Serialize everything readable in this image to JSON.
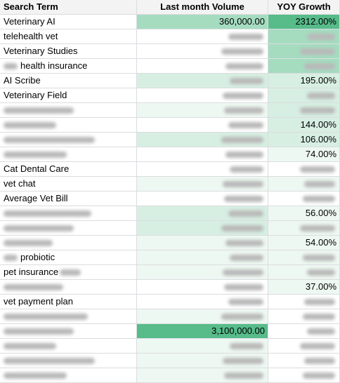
{
  "header": {
    "col_term": "Search Term",
    "col_volume": "Last month Volume",
    "col_growth": "YOY Growth"
  },
  "colors": {
    "strong_green": "#57bb8a",
    "mid_green": "#a5dcc0",
    "light_green": "#d7efe2",
    "pale_green": "#eef8f2",
    "white": "#ffffff"
  },
  "rows": [
    {
      "term": "Veterinary AI",
      "term_blur": 0,
      "volume": "360,000.00",
      "volume_blur": 0,
      "growth": "2312.00%",
      "growth_blur": 0,
      "vol_bg": "mid_green",
      "growth_bg": "strong_green"
    },
    {
      "term": "telehealth vet",
      "term_blur": 0,
      "volume": "",
      "volume_blur": 1,
      "growth": "",
      "growth_blur": 1,
      "vol_bg": "white",
      "growth_bg": "mid_green"
    },
    {
      "term": "Veterinary Studies",
      "term_blur": 0,
      "volume": "",
      "volume_blur": 1,
      "growth": "",
      "growth_blur": 1,
      "vol_bg": "white",
      "growth_bg": "mid_green"
    },
    {
      "term": "health insurance",
      "term_blur": 1,
      "volume": "",
      "volume_blur": 1,
      "growth": "",
      "growth_blur": 1,
      "vol_bg": "white",
      "growth_bg": "mid_green"
    },
    {
      "term": "AI Scribe",
      "term_blur": 0,
      "volume": "",
      "volume_blur": 1,
      "growth": "195.00%",
      "growth_blur": 0,
      "vol_bg": "light_green",
      "growth_bg": "light_green"
    },
    {
      "term": "Veterinary Field",
      "term_blur": 0,
      "volume": "",
      "volume_blur": 1,
      "growth": "",
      "growth_blur": 1,
      "vol_bg": "white",
      "growth_bg": "light_green"
    },
    {
      "term": "",
      "term_blur": 1,
      "volume": "",
      "volume_blur": 1,
      "growth": "",
      "growth_blur": 1,
      "vol_bg": "pale_green",
      "growth_bg": "light_green"
    },
    {
      "term": "",
      "term_blur": 1,
      "volume": "",
      "volume_blur": 1,
      "growth": "144.00%",
      "growth_blur": 0,
      "vol_bg": "white",
      "growth_bg": "light_green"
    },
    {
      "term": "",
      "term_blur": 1,
      "volume": "",
      "volume_blur": 1,
      "growth": "106.00%",
      "growth_blur": 0,
      "vol_bg": "light_green",
      "growth_bg": "light_green"
    },
    {
      "term": "",
      "term_blur": 1,
      "volume": "",
      "volume_blur": 1,
      "growth": "74.00%",
      "growth_blur": 0,
      "vol_bg": "white",
      "growth_bg": "pale_green"
    },
    {
      "term": "Cat Dental Care",
      "term_blur": 0,
      "volume": "",
      "volume_blur": 1,
      "growth": "",
      "growth_blur": 1,
      "vol_bg": "white",
      "growth_bg": "white"
    },
    {
      "term": "vet chat",
      "term_blur": 0,
      "volume": "",
      "volume_blur": 1,
      "growth": "",
      "growth_blur": 1,
      "vol_bg": "pale_green",
      "growth_bg": "pale_green"
    },
    {
      "term": "Average Vet Bill",
      "term_blur": 0,
      "volume": "",
      "volume_blur": 1,
      "growth": "",
      "growth_blur": 1,
      "vol_bg": "white",
      "growth_bg": "white"
    },
    {
      "term": "",
      "term_blur": 1,
      "volume": "",
      "volume_blur": 1,
      "growth": "56.00%",
      "growth_blur": 0,
      "vol_bg": "light_green",
      "growth_bg": "pale_green"
    },
    {
      "term": "",
      "term_blur": 1,
      "volume": "",
      "volume_blur": 1,
      "growth": "",
      "growth_blur": 1,
      "vol_bg": "light_green",
      "growth_bg": "pale_green"
    },
    {
      "term": "",
      "term_blur": 1,
      "volume": "",
      "volume_blur": 1,
      "growth": "54.00%",
      "growth_blur": 0,
      "vol_bg": "pale_green",
      "growth_bg": "pale_green"
    },
    {
      "term": "probiotic",
      "term_blur": 1,
      "volume": "",
      "volume_blur": 1,
      "growth": "",
      "growth_blur": 1,
      "vol_bg": "pale_green",
      "growth_bg": "pale_green"
    },
    {
      "term": "pet insurance",
      "term_blur": 0,
      "volume": "",
      "volume_blur": 1,
      "growth": "",
      "growth_blur": 1,
      "vol_bg": "pale_green",
      "growth_bg": "pale_green",
      "term_trailing_blur": 1
    },
    {
      "term": "",
      "term_blur": 1,
      "volume": "",
      "volume_blur": 1,
      "growth": "37.00%",
      "growth_blur": 0,
      "vol_bg": "white",
      "growth_bg": "pale_green"
    },
    {
      "term": "vet payment plan",
      "term_blur": 0,
      "volume": "",
      "volume_blur": 1,
      "growth": "",
      "growth_blur": 1,
      "vol_bg": "white",
      "growth_bg": "white"
    },
    {
      "term": "",
      "term_blur": 1,
      "volume": "",
      "volume_blur": 1,
      "growth": "",
      "growth_blur": 1,
      "vol_bg": "pale_green",
      "growth_bg": "white"
    },
    {
      "term": "",
      "term_blur": 1,
      "volume": "3,100,000.00",
      "volume_blur": 0,
      "growth": "",
      "growth_blur": 1,
      "vol_bg": "strong_green",
      "growth_bg": "white"
    },
    {
      "term": "",
      "term_blur": 1,
      "volume": "",
      "volume_blur": 1,
      "growth": "",
      "growth_blur": 1,
      "vol_bg": "pale_green",
      "growth_bg": "white"
    },
    {
      "term": "",
      "term_blur": 1,
      "volume": "",
      "volume_blur": 1,
      "growth": "",
      "growth_blur": 1,
      "vol_bg": "pale_green",
      "growth_bg": "white"
    },
    {
      "term": "",
      "term_blur": 1,
      "volume": "",
      "volume_blur": 1,
      "growth": "",
      "growth_blur": 1,
      "vol_bg": "pale_green",
      "growth_bg": "white"
    }
  ]
}
